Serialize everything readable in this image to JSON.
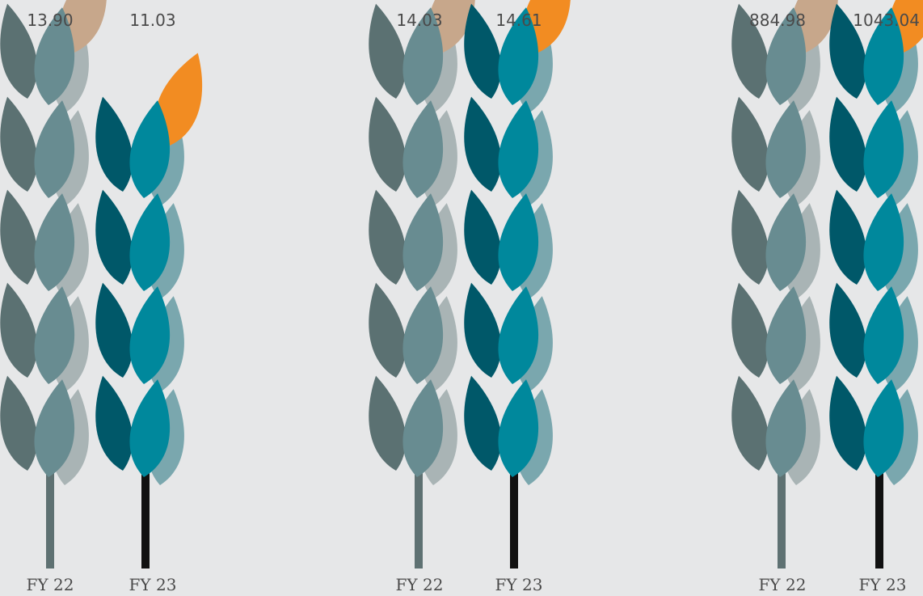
{
  "colors": {
    "background": "#e6e7e8",
    "fy22_stem": "#5e7172",
    "fy22_leaf_back": "#5b7172",
    "fy22_leaf_mid": "#a9b4b5",
    "fy22_leaf_front": "#688c91",
    "fy22_tip": "#c7a78b",
    "fy23_stem": "#111111",
    "fy23_leaf_back": "#005869",
    "fy23_leaf_mid": "#7aa7ae",
    "fy23_leaf_front": "#00889c",
    "fy23_tip": "#f28c22",
    "text": "#4a4a4a"
  },
  "chart_data": [
    {
      "type": "bar",
      "categories": [
        "FY 22",
        "FY 23"
      ],
      "values": [
        13.9,
        11.03
      ],
      "value_labels": [
        "13.90",
        "11.03"
      ],
      "title": "",
      "xlabel": "",
      "ylabel": ""
    },
    {
      "type": "bar",
      "categories": [
        "FY 22",
        "FY 23"
      ],
      "values": [
        14.03,
        14.61
      ],
      "value_labels": [
        "14.03",
        "14.61"
      ],
      "title": "",
      "xlabel": "",
      "ylabel": ""
    },
    {
      "type": "bar",
      "categories": [
        "FY 22",
        "FY 23"
      ],
      "values": [
        884.98,
        1043.04
      ],
      "value_labels": [
        "884.98",
        "1043.04"
      ],
      "title": "",
      "xlabel": "",
      "ylabel": ""
    }
  ]
}
